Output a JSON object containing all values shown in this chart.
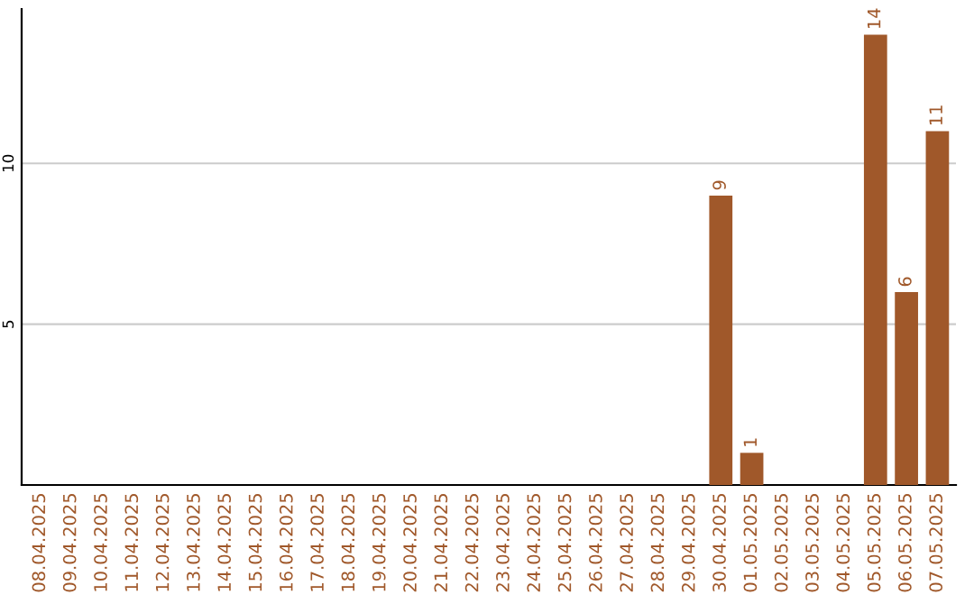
{
  "chart_data": {
    "type": "bar",
    "categories": [
      "08.04.2025",
      "09.04.2025",
      "10.04.2025",
      "11.04.2025",
      "12.04.2025",
      "13.04.2025",
      "14.04.2025",
      "15.04.2025",
      "16.04.2025",
      "17.04.2025",
      "18.04.2025",
      "19.04.2025",
      "20.04.2025",
      "21.04.2025",
      "22.04.2025",
      "23.04.2025",
      "24.04.2025",
      "25.04.2025",
      "26.04.2025",
      "27.04.2025",
      "28.04.2025",
      "29.04.2025",
      "30.04.2025",
      "01.05.2025",
      "02.05.2025",
      "03.05.2025",
      "04.05.2025",
      "05.05.2025",
      "06.05.2025",
      "07.05.2025"
    ],
    "values": [
      0,
      0,
      0,
      0,
      0,
      0,
      0,
      0,
      0,
      0,
      0,
      0,
      0,
      0,
      0,
      0,
      0,
      0,
      0,
      0,
      0,
      0,
      9,
      1,
      0,
      0,
      0,
      14,
      6,
      11
    ],
    "value_labels": [
      null,
      null,
      null,
      null,
      null,
      null,
      null,
      null,
      null,
      null,
      null,
      null,
      null,
      null,
      null,
      null,
      null,
      null,
      null,
      null,
      null,
      null,
      "9",
      "1",
      null,
      null,
      null,
      "14",
      "6",
      "11"
    ],
    "color": "#a0582a",
    "ylim": [
      0,
      14.8
    ],
    "yticks": [
      5,
      10
    ],
    "grid": "y",
    "legend": false
  }
}
